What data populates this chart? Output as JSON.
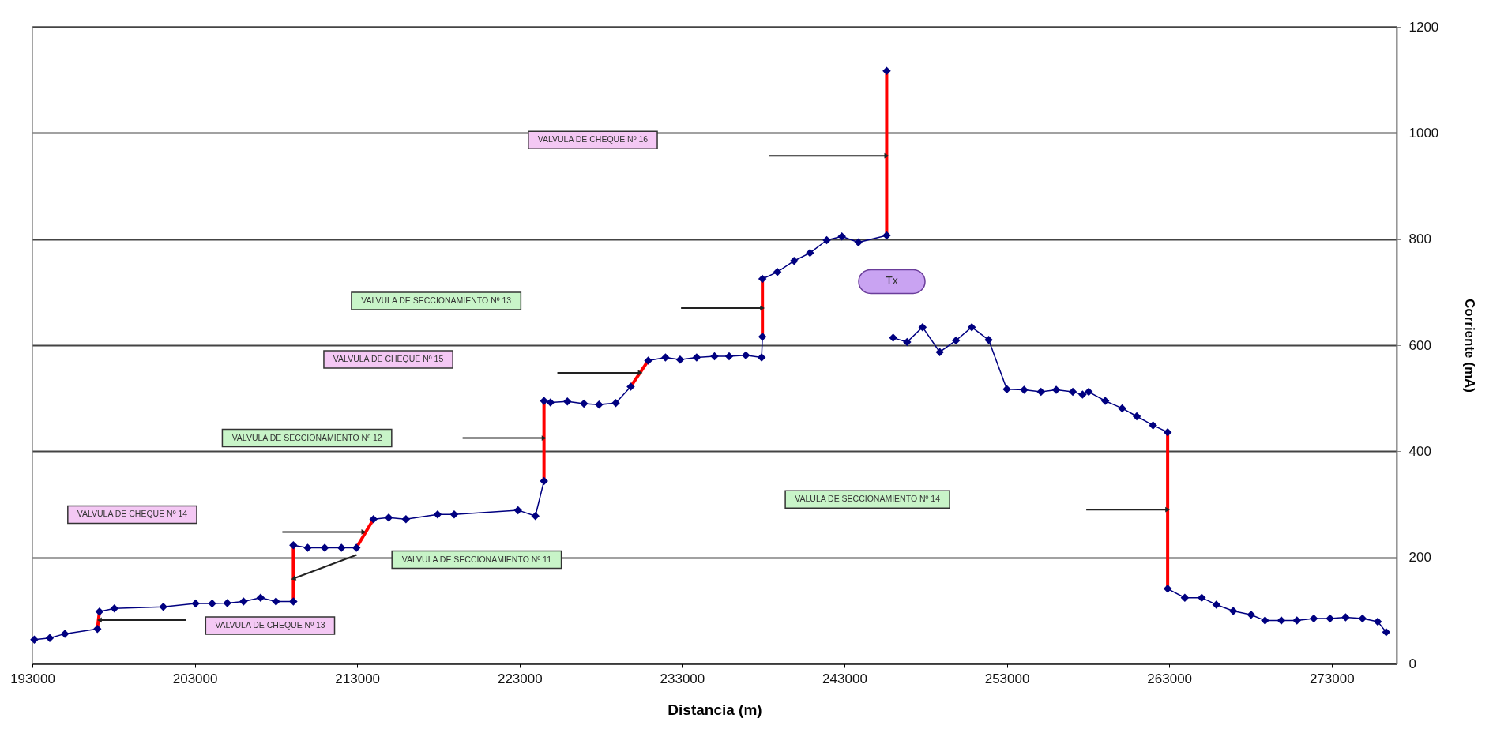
{
  "chart_data": {
    "type": "line",
    "xlabel": "Distancia (m)",
    "ylabel": "Corriente (mA)",
    "xlim": [
      193000,
      277000
    ],
    "xticks": [
      193000,
      203000,
      213000,
      223000,
      233000,
      243000,
      253000,
      263000,
      273000
    ],
    "ylim": [
      0,
      1200
    ],
    "yticks": [
      0,
      200,
      400,
      600,
      800,
      1000,
      1200
    ],
    "grid": "y",
    "marker": "diamond",
    "series": [
      {
        "color": "#000080",
        "x": [
          193120,
          194070,
          195000,
          197000,
          197130,
          198050,
          201060,
          203050,
          204070,
          205000,
          206000,
          207050,
          208000,
          209070,
          209070,
          209950,
          211000,
          212030,
          212950,
          214000,
          214940,
          216000,
          217950,
          218970,
          222900,
          223970,
          224500,
          224500,
          224900,
          225940,
          226960,
          227890,
          228920,
          229840,
          230920,
          231980,
          232880,
          233900,
          235000,
          235900,
          236930,
          237900,
          237950,
          237950,
          238870,
          239900,
          240880,
          241910,
          242840,
          243860,
          245600,
          245600
        ],
        "values": [
          45,
          48,
          56,
          65,
          98,
          104,
          107,
          113,
          113,
          114,
          117,
          124,
          117,
          117,
          223,
          218,
          218,
          218,
          218,
          272,
          275,
          272,
          281,
          281,
          289,
          278,
          344,
          495,
          492,
          494,
          490,
          488,
          491,
          522,
          571,
          577,
          573,
          577,
          579,
          579,
          581,
          577,
          616,
          725,
          738,
          759,
          774,
          798,
          805,
          794,
          807,
          1117
        ]
      },
      {
        "color": "#000080",
        "x": [
          246000,
          246860,
          247810,
          248870,
          249870,
          250840,
          251880,
          253000,
          254060,
          255100,
          256040,
          257060,
          257660,
          258040,
          259060,
          260100,
          261000,
          262000,
          262900,
          262900,
          263960,
          265000,
          265900,
          266940,
          268040,
          268900,
          269900,
          270860,
          271900,
          272900,
          273860,
          274900,
          275840,
          276360
        ],
        "values": [
          614,
          606,
          634,
          587,
          609,
          634,
          610,
          517,
          516,
          512,
          516,
          512,
          507,
          512,
          495,
          481,
          466,
          449,
          436,
          141,
          124,
          124,
          111,
          99,
          92,
          81,
          81,
          81,
          85,
          85,
          87,
          85,
          79,
          59
        ]
      },
      {
        "color": "#ff0000",
        "marker": "none",
        "x": [
          197000,
          197130
        ],
        "values": [
          65,
          98
        ]
      },
      {
        "color": "#ff0000",
        "marker": "none",
        "x": [
          209070,
          209070
        ],
        "values": [
          117,
          223
        ]
      },
      {
        "color": "#ff0000",
        "marker": "none",
        "x": [
          212950,
          214000
        ],
        "values": [
          218,
          272
        ]
      },
      {
        "color": "#ff0000",
        "marker": "none",
        "x": [
          224500,
          224500
        ],
        "values": [
          344,
          495
        ]
      },
      {
        "color": "#ff0000",
        "marker": "none",
        "x": [
          229840,
          230920
        ],
        "values": [
          522,
          571
        ]
      },
      {
        "color": "#ff0000",
        "marker": "none",
        "x": [
          237950,
          237950
        ],
        "values": [
          616,
          725
        ]
      },
      {
        "color": "#ff0000",
        "marker": "none",
        "x": [
          245600,
          245600
        ],
        "values": [
          807,
          1117
        ]
      },
      {
        "color": "#ff0000",
        "marker": "none",
        "x": [
          262900,
          262900
        ],
        "values": [
          436,
          141
        ]
      }
    ],
    "annotations": [
      "VALVULA DE CHEQUE Nº 13",
      "VALVULA DE SECCIONAMIENTO Nº 11",
      "VALVULA DE SECCIONAMIENTO Nº 12",
      "VALVULA DE CHEQUE Nº 14",
      "VALVULA DE CHEQUE Nº 15",
      "VALVULA DE SECCIONAMIENTO Nº 13",
      "VALVULA DE CHEQUE Nº 16",
      "VALULA DE SECCIONAMIENTO Nº 14",
      "Tx"
    ]
  }
}
